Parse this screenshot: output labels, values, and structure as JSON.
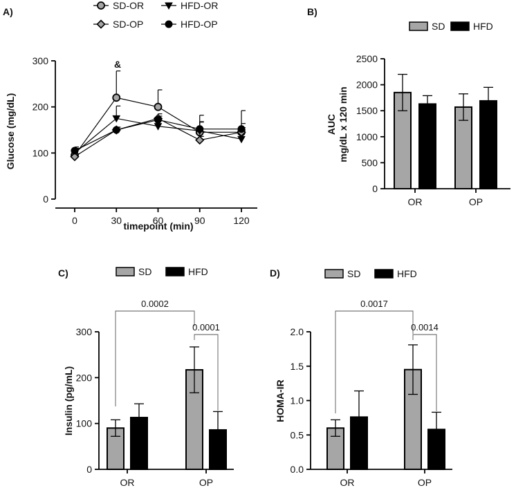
{
  "chart_data": [
    {
      "panel": "A)",
      "type": "line",
      "xlabel": "timepoint (min)",
      "ylabel": "Glucose (mg/dL)",
      "x": [
        0,
        30,
        60,
        90,
        120
      ],
      "xticks": [
        "0",
        "30",
        "60",
        "90",
        "120"
      ],
      "yticks": [
        "0",
        "100",
        "200",
        "300"
      ],
      "ylim": [
        0,
        300
      ],
      "annotation": "&",
      "series": [
        {
          "name": "SD-OR",
          "marker": "circle-gray",
          "values": [
            95,
            220,
            200,
            145,
            145
          ],
          "errors": [
            12,
            58,
            37,
            37,
            47
          ]
        },
        {
          "name": "HFD-OR",
          "marker": "triangle-down",
          "values": [
            100,
            175,
            158,
            148,
            130
          ],
          "errors": [
            10,
            27,
            15,
            20,
            20
          ]
        },
        {
          "name": "SD-OP",
          "marker": "diamond",
          "values": [
            92,
            150,
            175,
            128,
            145
          ],
          "errors": [
            6,
            6,
            10,
            8,
            10
          ]
        },
        {
          "name": "HFD-OP",
          "marker": "circle-black",
          "values": [
            105,
            150,
            172,
            152,
            152
          ],
          "errors": [
            8,
            6,
            8,
            15,
            12
          ]
        }
      ]
    },
    {
      "panel": "B)",
      "type": "bar",
      "categories": [
        "OR",
        "OP"
      ],
      "ylabel_line1": "AUC",
      "ylabel_line2": "mg/dL x 120 min",
      "yticks": [
        "0",
        "500",
        "1000",
        "1500",
        "2000",
        "2500"
      ],
      "ylim": [
        0,
        2500
      ],
      "series": [
        {
          "name": "SD",
          "color": "#a6a6a6",
          "values": [
            1850,
            1570
          ],
          "errors": [
            350,
            255
          ]
        },
        {
          "name": "HFD",
          "color": "#000000",
          "values": [
            1630,
            1690
          ],
          "errors": [
            160,
            260
          ]
        }
      ]
    },
    {
      "panel": "C)",
      "type": "bar",
      "categories": [
        "OR",
        "OP"
      ],
      "ylabel": "Insulin (pg/mL)",
      "yticks": [
        "0",
        "100",
        "200",
        "300"
      ],
      "ylim": [
        0,
        300
      ],
      "series": [
        {
          "name": "SD",
          "color": "#a6a6a6",
          "values": [
            90,
            217
          ],
          "errors": [
            18,
            50
          ]
        },
        {
          "name": "HFD",
          "color": "#000000",
          "values": [
            113,
            86
          ],
          "errors": [
            30,
            40
          ]
        }
      ],
      "comparisons": [
        {
          "label": "0.0002",
          "from": "OR-SD",
          "to": "OP-SD"
        },
        {
          "label": "0.0001",
          "from": "OP-SD",
          "to": "OP-HFD"
        }
      ]
    },
    {
      "panel": "D)",
      "type": "bar",
      "categories": [
        "OR",
        "OP"
      ],
      "ylabel": "HOMA-IR",
      "yticks": [
        "0.0",
        "0.5",
        "1.0",
        "1.5",
        "2.0"
      ],
      "ylim": [
        0,
        2.0
      ],
      "series": [
        {
          "name": "SD",
          "color": "#a6a6a6",
          "values": [
            0.6,
            1.45
          ],
          "errors": [
            0.12,
            0.36
          ]
        },
        {
          "name": "HFD",
          "color": "#000000",
          "values": [
            0.76,
            0.58
          ],
          "errors": [
            0.38,
            0.25
          ]
        }
      ],
      "comparisons": [
        {
          "label": "0.0017",
          "from": "OR-SD",
          "to": "OP-SD"
        },
        {
          "label": "0.0014",
          "from": "OP-SD",
          "to": "OP-HFD"
        }
      ]
    }
  ]
}
